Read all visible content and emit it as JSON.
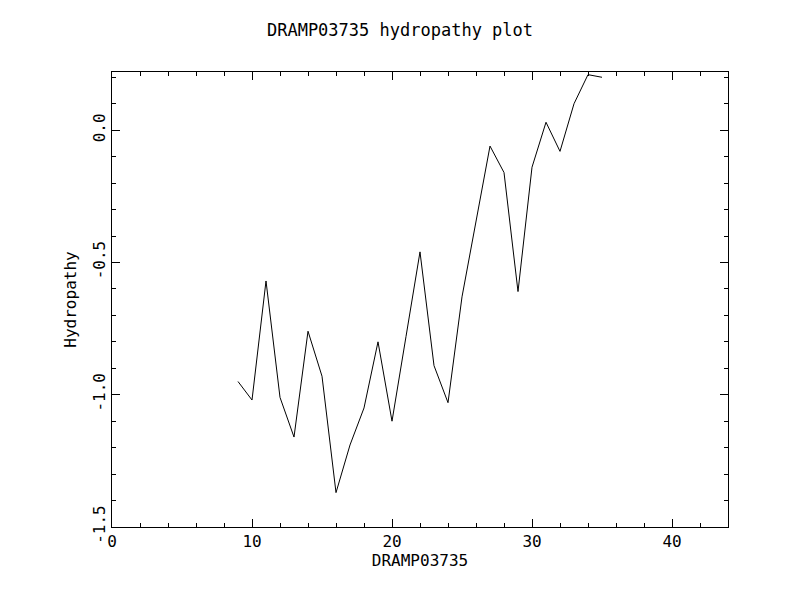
{
  "chart_data": {
    "type": "line",
    "title": "DRAMP03735 hydropathy plot",
    "x_label": "DRAMP03735",
    "y_label": "Hydropathy",
    "x": [
      9,
      10,
      11,
      12,
      13,
      14,
      15,
      16,
      17,
      18,
      19,
      20,
      21,
      22,
      23,
      24,
      25,
      26,
      27,
      28,
      29,
      30,
      31,
      32,
      33,
      34,
      35
    ],
    "values": [
      -0.95,
      -1.02,
      -0.57,
      -1.01,
      -1.16,
      -0.76,
      -0.93,
      -1.37,
      -1.19,
      -1.05,
      -0.8,
      -1.1,
      -0.78,
      -0.46,
      -0.89,
      -1.03,
      -0.63,
      -0.35,
      -0.06,
      -0.16,
      -0.61,
      -0.14,
      0.03,
      -0.08,
      0.1,
      0.21,
      0.2
    ],
    "color": "#000000",
    "xlim": [
      0,
      44
    ],
    "xticks": [
      0,
      10,
      20,
      30,
      40
    ],
    "ylim": [
      -1.5,
      0.22
    ],
    "yticks": [
      -1.5,
      {
        "value": -1.0,
        "label": "-1.0"
      },
      -0.5,
      {
        "value": 0.0,
        "label": "0.0"
      }
    ],
    "grid": false
  }
}
